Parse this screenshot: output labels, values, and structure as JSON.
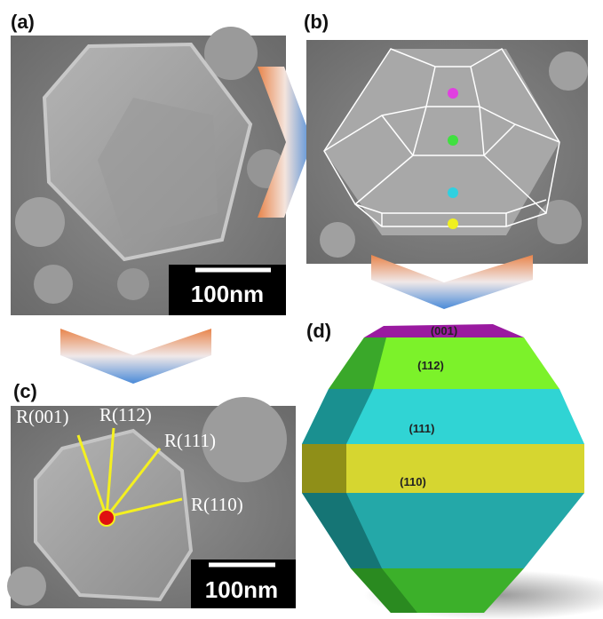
{
  "panels": [
    {
      "label": "(a)",
      "scale_bar": "100nm"
    },
    {
      "label": "(b)"
    },
    {
      "label": "(c)",
      "scale_bar": "100nm",
      "annotations": [
        "R(001)",
        "R(112)",
        "R(111)",
        "R(110)"
      ]
    },
    {
      "label": "(d)",
      "facets": [
        "(001)",
        "(112)",
        "(111)",
        "(110)"
      ]
    }
  ]
}
